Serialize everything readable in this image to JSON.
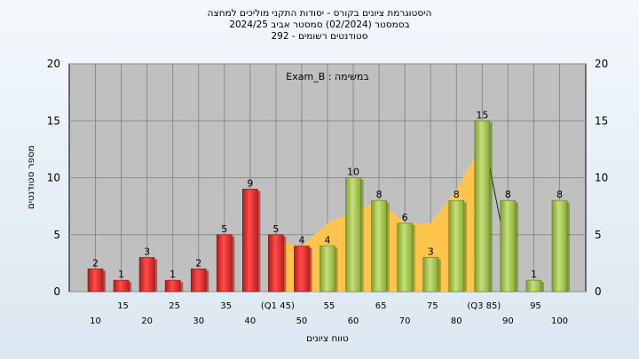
{
  "header": {
    "title": "היסטוגרמת ציונים בקורס - יסודות התקני מוליכים למחצה",
    "semester": "בסמסטר  (02/2024)  סמסטר אביב 2024/25",
    "students": "סטודנטים רשומים - 292"
  },
  "chart_data": {
    "type": "bar",
    "xlabel": "טווח ציונים",
    "ylabel": "מספר סטודנטים",
    "ylim": [
      0,
      20
    ],
    "yticks": [
      0,
      5,
      10,
      15,
      20
    ],
    "grid": true,
    "annotation": "במשימה : Exam_B",
    "categories": [
      "10",
      "15",
      "20",
      "25",
      "30",
      "35",
      "40",
      "45",
      "50",
      "55",
      "60",
      "65",
      "70",
      "75",
      "80",
      "85",
      "90",
      "95",
      "100"
    ],
    "tick_labels": [
      "10",
      "15",
      "20",
      "25",
      "30",
      "35",
      "40",
      "(Q1 45)",
      "50",
      "55",
      "60",
      "65",
      "70",
      "75",
      "80",
      "(Q3 85)",
      "90",
      "95",
      "100"
    ],
    "values": [
      2,
      1,
      3,
      1,
      2,
      5,
      9,
      5,
      4,
      4,
      10,
      8,
      6,
      3,
      8,
      15,
      8,
      1,
      8
    ],
    "bar_colors": [
      "#e03434",
      "#e03434",
      "#e03434",
      "#e03434",
      "#e03434",
      "#e03434",
      "#e03434",
      "#e03434",
      "#e03434",
      "#9bc04a",
      "#9bc04a",
      "#9bc04a",
      "#9bc04a",
      "#9bc04a",
      "#9bc04a",
      "#9bc04a",
      "#9bc04a",
      "#9bc04a",
      "#9bc04a"
    ],
    "area_color": "#ffc44c",
    "area_from": "45",
    "area_to": "85",
    "area_values": {
      "45": 4.5,
      "50": 4,
      "55": 6,
      "60": 7,
      "65": 8,
      "70": 6,
      "75": 6,
      "80": 9,
      "85": 13
    }
  }
}
